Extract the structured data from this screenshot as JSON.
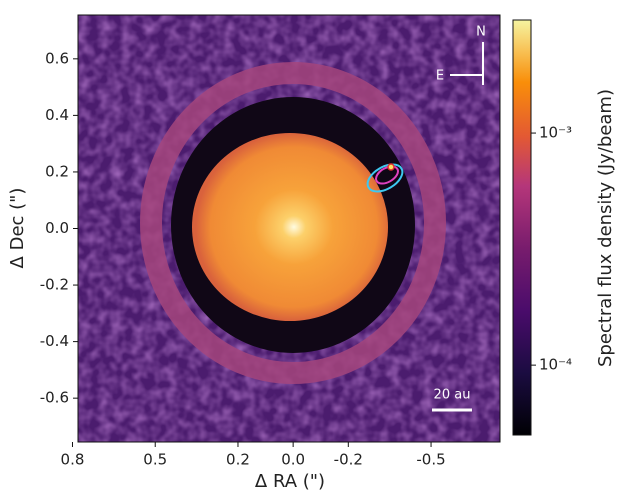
{
  "chart_data": {
    "type": "image",
    "xlabel": "Δ RA (\")",
    "ylabel": "Δ Dec (\")",
    "xlim": [
      0.78,
      -0.75
    ],
    "xticks": [
      {
        "value": 0.8,
        "label": "0.8"
      },
      {
        "value": 0.5,
        "label": "0.5"
      },
      {
        "value": 0.2,
        "label": "0.2"
      },
      {
        "value": 0.0,
        "label": "0.0"
      },
      {
        "value": -0.2,
        "label": "-0.2"
      },
      {
        "value": -0.5,
        "label": "-0.5"
      }
    ],
    "ylim": [
      -0.755,
      0.755
    ],
    "yticks": [
      {
        "value": 0.6,
        "label": "0.6"
      },
      {
        "value": 0.4,
        "label": "0.4"
      },
      {
        "value": 0.2,
        "label": "0.2"
      },
      {
        "value": 0.0,
        "label": "0.0"
      },
      {
        "value": -0.2,
        "label": "-0.2"
      },
      {
        "value": -0.4,
        "label": "-0.4"
      },
      {
        "value": -0.6,
        "label": "-0.6"
      }
    ],
    "annotations": {
      "north": "N",
      "east": "E",
      "scale_bar": "20 au"
    },
    "colorbar": {
      "label": "Spectral flux density (Jy/beam)",
      "log": true,
      "lim": [
        5e-05,
        0.00307
      ],
      "ticks": [
        {
          "value": 0.001,
          "label": "10⁻³"
        },
        {
          "value": 0.0001,
          "label": "10⁻⁴"
        }
      ]
    }
  }
}
